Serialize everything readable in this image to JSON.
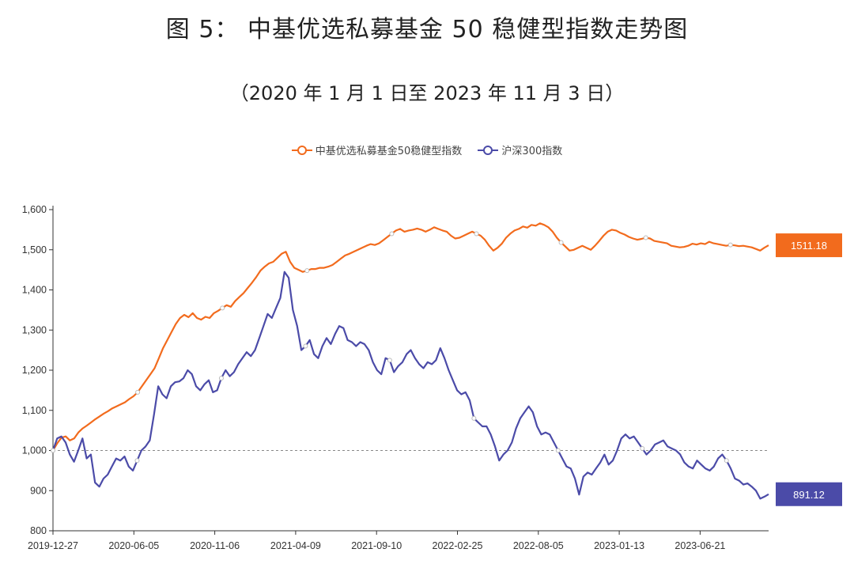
{
  "title": "图 5： 中基优选私募基金 50 稳健型指数走势图",
  "subtitle": "（2020 年 1 月 1 日至 2023 年 11 月 3 日）",
  "colors": {
    "orange": "#F26B1D",
    "blue": "#4B4BA8",
    "refline": "#888888",
    "axis": "#333333"
  },
  "chart_data": {
    "type": "line",
    "ylim": [
      800,
      1600
    ],
    "yticks": [
      "800",
      "900",
      "1,000",
      "1,100",
      "1,200",
      "1,300",
      "1,400",
      "1,500",
      "1,600"
    ],
    "x_tick_labels": [
      "2019-12-27",
      "2020-06-05",
      "2020-11-06",
      "2021-04-09",
      "2021-09-10",
      "2022-02-25",
      "2022-08-05",
      "2023-01-13",
      "2023-06-21"
    ],
    "reference_line": 1000,
    "legend": "top-center",
    "series": [
      {
        "name": "中基优选私募基金50稳健型指数",
        "color": "#F26B1D",
        "end_label": "1511.18",
        "values": [
          1000,
          1018,
          1032,
          1035,
          1025,
          1030,
          1045,
          1055,
          1062,
          1070,
          1078,
          1085,
          1092,
          1098,
          1105,
          1110,
          1115,
          1120,
          1128,
          1135,
          1145,
          1160,
          1175,
          1190,
          1205,
          1230,
          1255,
          1275,
          1295,
          1315,
          1330,
          1338,
          1332,
          1342,
          1330,
          1326,
          1333,
          1330,
          1342,
          1348,
          1355,
          1362,
          1358,
          1372,
          1382,
          1392,
          1405,
          1418,
          1432,
          1448,
          1458,
          1466,
          1470,
          1480,
          1490,
          1495,
          1470,
          1455,
          1450,
          1445,
          1448,
          1452,
          1452,
          1455,
          1455,
          1458,
          1462,
          1470,
          1478,
          1486,
          1490,
          1495,
          1500,
          1505,
          1510,
          1514,
          1512,
          1516,
          1524,
          1532,
          1540,
          1548,
          1552,
          1545,
          1548,
          1550,
          1553,
          1550,
          1545,
          1550,
          1556,
          1552,
          1548,
          1545,
          1535,
          1528,
          1530,
          1535,
          1540,
          1545,
          1540,
          1535,
          1525,
          1510,
          1498,
          1505,
          1515,
          1530,
          1540,
          1548,
          1552,
          1558,
          1555,
          1562,
          1560,
          1566,
          1562,
          1556,
          1545,
          1530,
          1518,
          1508,
          1498,
          1500,
          1505,
          1510,
          1505,
          1500,
          1510,
          1522,
          1535,
          1545,
          1550,
          1548,
          1542,
          1538,
          1532,
          1528,
          1525,
          1527,
          1530,
          1528,
          1522,
          1520,
          1518,
          1516,
          1510,
          1508,
          1506,
          1507,
          1510,
          1515,
          1513,
          1516,
          1514,
          1520,
          1516,
          1514,
          1512,
          1510,
          1512,
          1511,
          1509,
          1510,
          1508,
          1506,
          1502,
          1498,
          1505,
          1511.18
        ]
      },
      {
        "name": "沪深300指数",
        "color": "#4B4BA8",
        "end_label": "891.12",
        "values": [
          1000,
          1030,
          1035,
          1020,
          990,
          972,
          1000,
          1030,
          980,
          990,
          920,
          910,
          930,
          940,
          960,
          980,
          975,
          985,
          960,
          950,
          975,
          1000,
          1010,
          1025,
          1090,
          1160,
          1140,
          1130,
          1160,
          1170,
          1172,
          1180,
          1200,
          1190,
          1160,
          1150,
          1165,
          1175,
          1145,
          1150,
          1180,
          1200,
          1185,
          1195,
          1215,
          1230,
          1245,
          1235,
          1250,
          1280,
          1310,
          1340,
          1330,
          1355,
          1380,
          1445,
          1430,
          1350,
          1310,
          1250,
          1260,
          1275,
          1240,
          1230,
          1260,
          1280,
          1265,
          1290,
          1310,
          1305,
          1275,
          1270,
          1260,
          1270,
          1265,
          1250,
          1220,
          1200,
          1190,
          1230,
          1225,
          1195,
          1210,
          1220,
          1240,
          1250,
          1230,
          1215,
          1205,
          1220,
          1215,
          1225,
          1255,
          1230,
          1200,
          1175,
          1150,
          1140,
          1145,
          1125,
          1080,
          1070,
          1060,
          1060,
          1040,
          1010,
          975,
          990,
          1000,
          1020,
          1055,
          1080,
          1095,
          1110,
          1095,
          1060,
          1040,
          1045,
          1040,
          1020,
          1000,
          980,
          960,
          955,
          930,
          890,
          935,
          945,
          940,
          955,
          970,
          990,
          965,
          975,
          1000,
          1030,
          1040,
          1030,
          1035,
          1020,
          1005,
          990,
          1000,
          1015,
          1020,
          1025,
          1010,
          1005,
          1000,
          990,
          970,
          960,
          955,
          975,
          965,
          955,
          950,
          960,
          980,
          990,
          975,
          955,
          930,
          925,
          915,
          918,
          910,
          900,
          880,
          885,
          891.12
        ]
      }
    ]
  }
}
